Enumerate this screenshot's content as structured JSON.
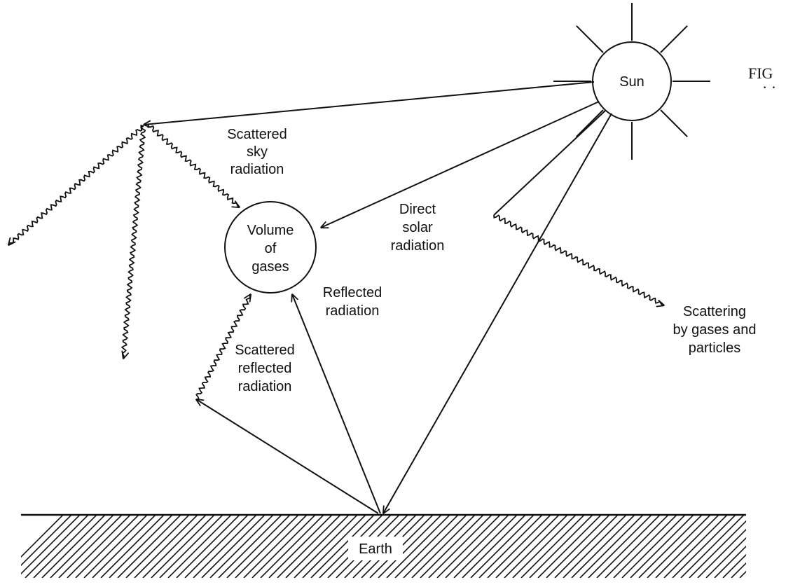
{
  "diagram": {
    "colors": {
      "ink": "#111111",
      "background": "#ffffff"
    },
    "sun": {
      "label": "Sun"
    },
    "gas_volume": {
      "label_lines": [
        "Volume",
        "of",
        "gases"
      ]
    },
    "earth": {
      "label": "Earth"
    },
    "figure_tag": {
      "text": "FIG"
    },
    "labels": {
      "scattered_sky": [
        "Scattered",
        "sky",
        "radiation"
      ],
      "direct_solar": [
        "Direct",
        "solar",
        "radiation"
      ],
      "reflected": [
        "Reflected",
        "radiation"
      ],
      "scattered_reflected": [
        "Scattered",
        "reflected",
        "radiation"
      ],
      "scattering_gases": [
        "Scattering",
        "by gases and",
        "particles"
      ]
    }
  }
}
